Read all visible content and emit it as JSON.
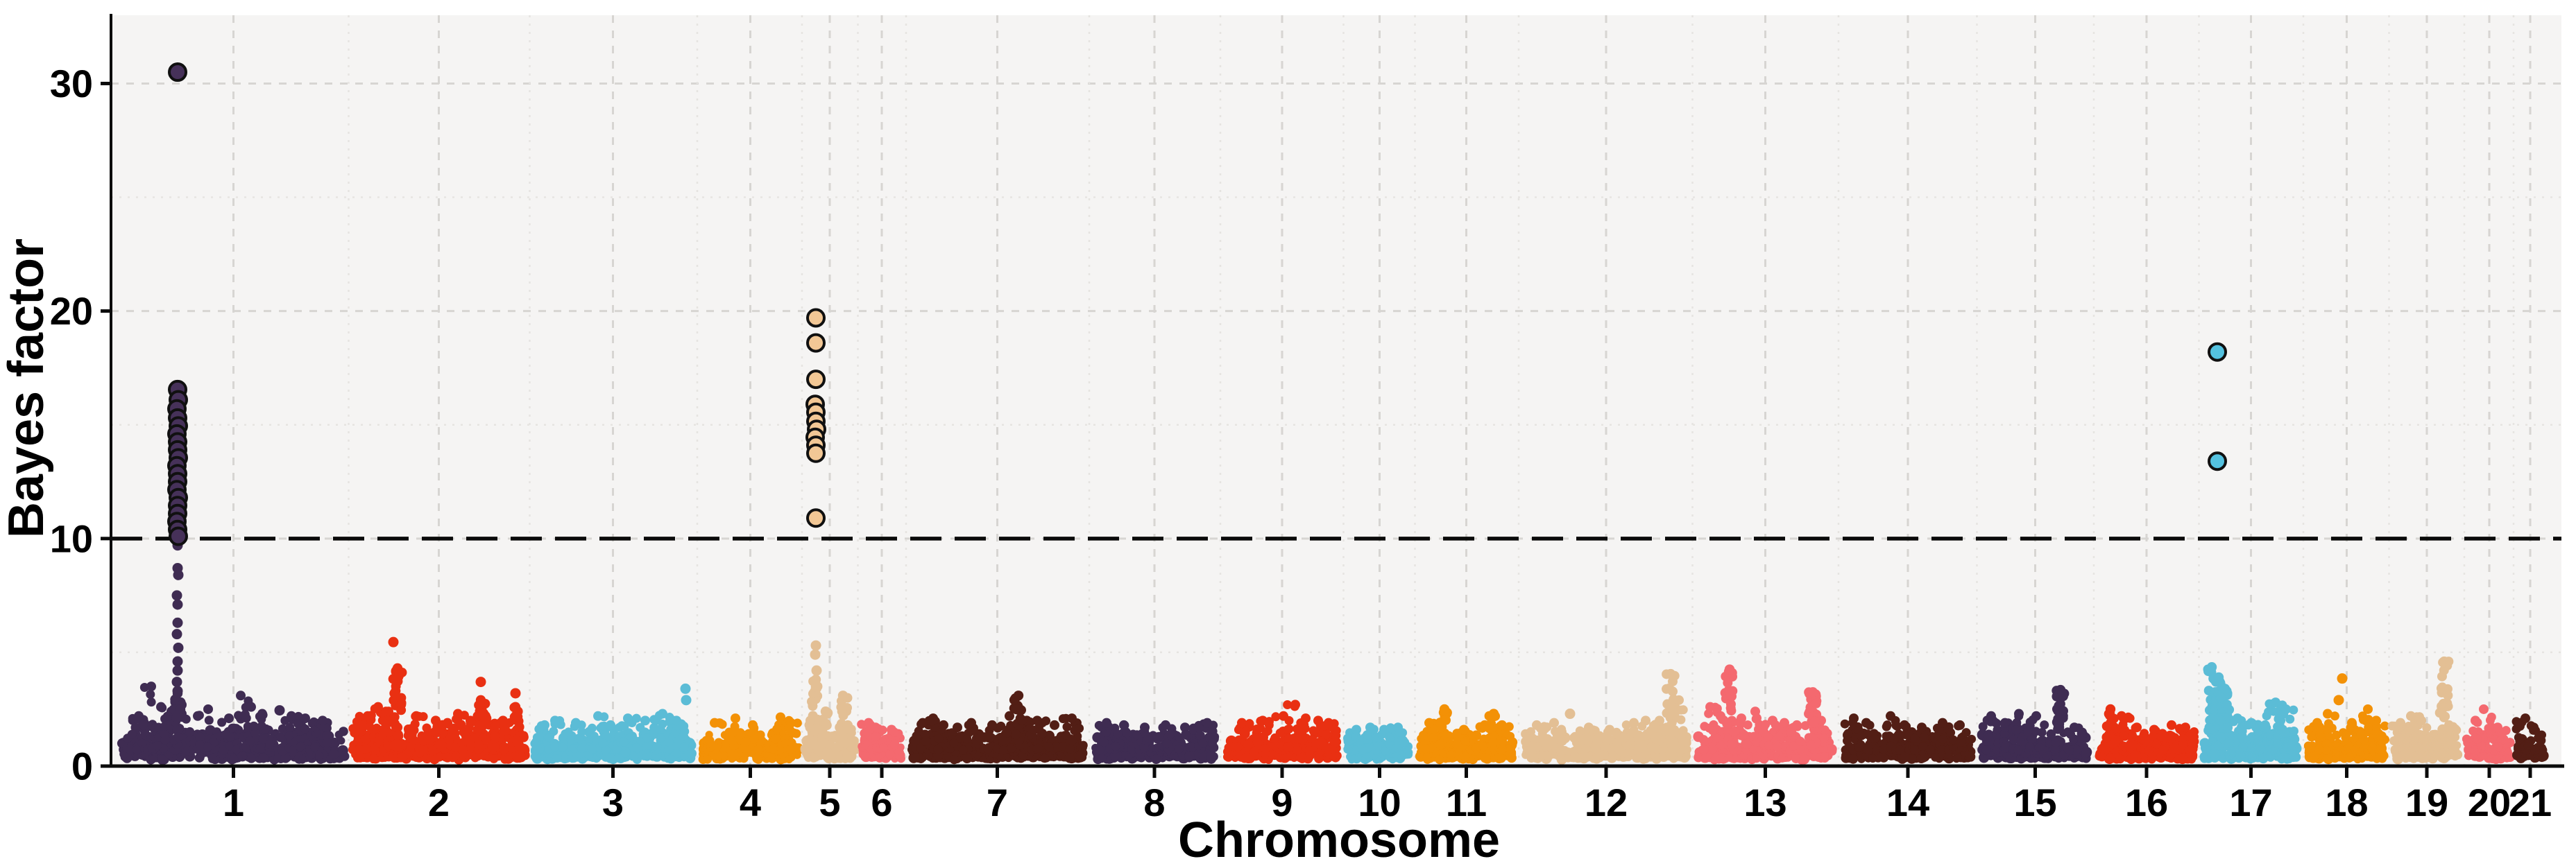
{
  "chart_data": {
    "type": "scatter",
    "subtype": "manhattan",
    "title": "",
    "xlabel": "Chromosome",
    "ylabel": "Bayes factor",
    "ylim": [
      0,
      33
    ],
    "yticks": [
      0,
      10,
      20,
      30
    ],
    "ygrid_major": [
      10,
      20,
      30
    ],
    "ygrid_minor": [
      5,
      15,
      25
    ],
    "threshold": {
      "value": 10,
      "style": "dashed",
      "color": "#0a0a0a"
    },
    "grid": "major dashed + minor dotted, light gray",
    "legend": "none",
    "panel_bg": "#f5f4f3",
    "grid_major_color": "#d7d5d2",
    "grid_minor_color": "#e6e4e1",
    "axis_color": "#0b0b0b",
    "palette_cycle": [
      "#3f2c52",
      "#e93012",
      "#5bbcd6",
      "#f39106",
      "#e3bf94",
      "#f4696f",
      "#521e15"
    ],
    "significant_fill": {
      "1": "#463159",
      "5": "#f2c795",
      "17": "#54c2e0"
    },
    "chromosomes": [
      {
        "label": "1",
        "x_range": [
          176,
          497
        ],
        "band_max": 1.6,
        "bumps": [
          [
            200,
            2.2
          ],
          [
            218,
            3.5
          ],
          [
            232,
            2.6
          ],
          [
            247,
            2.4
          ],
          [
            262,
            2.3
          ],
          [
            285,
            2.2
          ],
          [
            300,
            2.5
          ],
          [
            330,
            2.1
          ],
          [
            347,
            3.1
          ],
          [
            362,
            2.6
          ],
          [
            378,
            2.3
          ],
          [
            420,
            2.2
          ],
          [
            440,
            2.1
          ],
          [
            465,
            2.0
          ]
        ],
        "spikes": [
          [
            256,
            3.2
          ]
        ],
        "dots": [
          [
            256,
            9.7
          ],
          [
            256,
            8.7
          ],
          [
            257,
            8.4
          ],
          [
            255,
            7.5
          ],
          [
            256,
            7.1
          ],
          [
            256,
            6.3
          ],
          [
            255,
            5.8
          ],
          [
            257,
            5.2
          ],
          [
            256,
            4.6
          ],
          [
            256,
            4.2
          ],
          [
            255,
            3.7
          ],
          [
            256,
            3.3
          ],
          [
            403,
            2.45
          ]
        ],
        "significant": [
          [
            256,
            30.5
          ],
          [
            256,
            16.55
          ],
          [
            257,
            16.1
          ],
          [
            255,
            15.7
          ],
          [
            256,
            15.3
          ],
          [
            257,
            14.95
          ],
          [
            255,
            14.6
          ],
          [
            256,
            14.25
          ],
          [
            256,
            13.9
          ],
          [
            257,
            13.55
          ],
          [
            255,
            13.2
          ],
          [
            256,
            12.85
          ],
          [
            256,
            12.5
          ],
          [
            255,
            12.15
          ],
          [
            257,
            11.8
          ],
          [
            256,
            11.45
          ],
          [
            256,
            11.1
          ],
          [
            255,
            10.75
          ],
          [
            256,
            10.4
          ],
          [
            257,
            10.1
          ]
        ]
      },
      {
        "label": "2",
        "x_range": [
          508,
          757
        ],
        "band_max": 1.5,
        "bumps": [
          [
            520,
            2.0
          ],
          [
            530,
            2.2
          ],
          [
            545,
            2.6
          ],
          [
            560,
            2.4
          ],
          [
            600,
            2.2
          ],
          [
            628,
            2.0
          ],
          [
            645,
            1.9
          ],
          [
            660,
            2.3
          ],
          [
            678,
            2.0
          ],
          [
            700,
            2.2
          ],
          [
            725,
            2.0
          ]
        ],
        "spikes": [
          [
            573,
            4.3
          ],
          [
            693,
            2.9
          ],
          [
            743,
            2.6
          ]
        ],
        "dots": [
          [
            567,
            5.45
          ],
          [
            693,
            3.7
          ],
          [
            743,
            3.2
          ]
        ],
        "significant": []
      },
      {
        "label": "3",
        "x_range": [
          770,
          997
        ],
        "band_max": 1.5,
        "bumps": [
          [
            785,
            1.8
          ],
          [
            800,
            2.0
          ],
          [
            830,
            1.9
          ],
          [
            862,
            2.2
          ],
          [
            880,
            1.8
          ],
          [
            905,
            2.1
          ],
          [
            930,
            2.0
          ],
          [
            955,
            2.3
          ],
          [
            975,
            2.0
          ]
        ],
        "spikes": [],
        "dots": [
          [
            988,
            3.4
          ],
          [
            989,
            2.9
          ]
        ],
        "significant": []
      },
      {
        "label": "4",
        "x_range": [
          1013,
          1150
        ],
        "band_max": 1.5,
        "bumps": [
          [
            1030,
            1.9
          ],
          [
            1060,
            2.1
          ],
          [
            1085,
            1.8
          ],
          [
            1125,
            2.15
          ],
          [
            1140,
            1.9
          ]
        ],
        "spikes": [],
        "dots": [],
        "significant": []
      },
      {
        "label": "5",
        "x_range": [
          1162,
          1230
        ],
        "band_max": 1.5,
        "bumps": [
          [
            1168,
            2.0
          ],
          [
            1222,
            1.8
          ]
        ],
        "spikes": [
          [
            1176,
            3.8
          ],
          [
            1190,
            2.4
          ],
          [
            1215,
            3.1
          ]
        ],
        "dots": [
          [
            1176,
            5.3
          ],
          [
            1175,
            4.9
          ],
          [
            1177,
            4.2
          ]
        ],
        "significant": [
          [
            1176,
            19.7
          ],
          [
            1176,
            18.6
          ],
          [
            1176,
            17.0
          ],
          [
            1175,
            15.9
          ],
          [
            1176,
            15.55
          ],
          [
            1176,
            15.15
          ],
          [
            1177,
            14.8
          ],
          [
            1175,
            14.45
          ],
          [
            1176,
            14.1
          ],
          [
            1176,
            13.75
          ],
          [
            1176,
            10.9
          ]
        ]
      },
      {
        "label": "6",
        "x_range": [
          1243,
          1299
        ],
        "band_max": 1.4,
        "bumps": [
          [
            1252,
            1.9
          ],
          [
            1262,
            1.7
          ],
          [
            1285,
            1.6
          ]
        ],
        "spikes": [],
        "dots": [],
        "significant": []
      },
      {
        "label": "7",
        "x_range": [
          1313,
          1562
        ],
        "band_max": 1.5,
        "bumps": [
          [
            1330,
            1.9
          ],
          [
            1345,
            2.1
          ],
          [
            1360,
            1.8
          ],
          [
            1380,
            1.7
          ],
          [
            1400,
            1.9
          ],
          [
            1430,
            1.8
          ],
          [
            1455,
            2.2
          ],
          [
            1480,
            2.0
          ],
          [
            1495,
            2.0
          ],
          [
            1520,
            1.8
          ],
          [
            1545,
            2.1
          ]
        ],
        "spikes": [
          [
            1468,
            3.1
          ]
        ],
        "dots": [
          [
            1343,
            2.0
          ]
        ],
        "significant": []
      },
      {
        "label": "8",
        "x_range": [
          1578,
          1750
        ],
        "band_max": 1.5,
        "bumps": [
          [
            1595,
            1.9
          ],
          [
            1620,
            1.8
          ],
          [
            1650,
            1.7
          ],
          [
            1680,
            1.8
          ],
          [
            1708,
            1.7
          ],
          [
            1740,
            1.9
          ]
        ],
        "spikes": [],
        "dots": [],
        "significant": []
      },
      {
        "label": "9",
        "x_range": [
          1768,
          1928
        ],
        "band_max": 1.5,
        "bumps": [
          [
            1790,
            1.9
          ],
          [
            1820,
            2.0
          ],
          [
            1850,
            2.2
          ],
          [
            1867,
            2.7
          ],
          [
            1882,
            2.1
          ],
          [
            1900,
            2.0
          ],
          [
            1915,
            1.9
          ]
        ],
        "spikes": [],
        "dots": [],
        "significant": []
      },
      {
        "label": "10",
        "x_range": [
          1945,
          2032
        ],
        "band_max": 1.4,
        "bumps": [
          [
            1955,
            1.6
          ],
          [
            1975,
            1.7
          ],
          [
            1995,
            1.6
          ],
          [
            2015,
            1.7
          ]
        ],
        "spikes": [],
        "dots": [],
        "significant": []
      },
      {
        "label": "11",
        "x_range": [
          2047,
          2180
        ],
        "band_max": 1.5,
        "bumps": [
          [
            2060,
            1.9
          ],
          [
            2110,
            1.6
          ],
          [
            2140,
            1.8
          ],
          [
            2165,
            1.8
          ]
        ],
        "spikes": [
          [
            2082,
            2.5
          ],
          [
            2153,
            2.3
          ]
        ],
        "dots": [],
        "significant": []
      },
      {
        "label": "12",
        "x_range": [
          2198,
          2432
        ],
        "band_max": 1.5,
        "bumps": [
          [
            2215,
            1.8
          ],
          [
            2240,
            1.9
          ],
          [
            2290,
            1.7
          ],
          [
            2320,
            1.6
          ],
          [
            2355,
            1.9
          ],
          [
            2372,
            2.0
          ],
          [
            2392,
            2.0
          ],
          [
            2420,
            2.9
          ]
        ],
        "spikes": [
          [
            2408,
            4.05
          ]
        ],
        "dots": [
          [
            2263,
            2.3
          ]
        ],
        "significant": []
      },
      {
        "label": "13",
        "x_range": [
          2447,
          2642
        ],
        "band_max": 1.5,
        "bumps": [
          [
            2465,
            2.6
          ],
          [
            2480,
            2.2
          ],
          [
            2510,
            2.1
          ],
          [
            2530,
            2.4
          ],
          [
            2555,
            2.0
          ],
          [
            2572,
            1.9
          ],
          [
            2590,
            1.8
          ],
          [
            2625,
            2.0
          ]
        ],
        "spikes": [
          [
            2493,
            4.25
          ],
          [
            2613,
            3.25
          ]
        ],
        "dots": [],
        "significant": []
      },
      {
        "label": "14",
        "x_range": [
          2658,
          2842
        ],
        "band_max": 1.5,
        "bumps": [
          [
            2672,
            2.1
          ],
          [
            2690,
            1.9
          ],
          [
            2725,
            2.2
          ],
          [
            2745,
            1.8
          ],
          [
            2770,
            1.7
          ],
          [
            2800,
            1.9
          ],
          [
            2825,
            1.8
          ]
        ],
        "spikes": [],
        "dots": [],
        "significant": []
      },
      {
        "label": "15",
        "x_range": [
          2857,
          3010
        ],
        "band_max": 1.5,
        "bumps": [
          [
            2870,
            2.2
          ],
          [
            2890,
            1.9
          ],
          [
            2910,
            2.3
          ],
          [
            2935,
            2.2
          ],
          [
            2990,
            1.7
          ]
        ],
        "spikes": [
          [
            2970,
            3.35
          ]
        ],
        "dots": [],
        "significant": []
      },
      {
        "label": "16",
        "x_range": [
          3026,
          3162
        ],
        "band_max": 1.5,
        "bumps": [
          [
            3058,
            2.2
          ],
          [
            3080,
            1.7
          ],
          [
            3105,
            1.6
          ],
          [
            3130,
            1.8
          ],
          [
            3150,
            1.7
          ]
        ],
        "spikes": [
          [
            3042,
            2.5
          ]
        ],
        "dots": [],
        "significant": []
      },
      {
        "label": "17",
        "x_range": [
          3177,
          3312
        ],
        "band_max": 1.5,
        "bumps": [
          [
            3225,
            2.1
          ],
          [
            3245,
            1.9
          ],
          [
            3265,
            1.8
          ],
          [
            3280,
            2.8
          ],
          [
            3295,
            2.5
          ]
        ],
        "spikes": [
          [
            3188,
            4.35
          ],
          [
            3198,
            3.9
          ],
          [
            3207,
            3.4
          ]
        ],
        "dots": [],
        "significant": [
          [
            3196,
            18.2
          ],
          [
            3196,
            13.4
          ]
        ]
      },
      {
        "label": "18",
        "x_range": [
          3328,
          3437
        ],
        "band_max": 1.5,
        "bumps": [
          [
            3340,
            1.9
          ],
          [
            3355,
            2.3
          ],
          [
            3390,
            1.9
          ],
          [
            3413,
            2.5
          ],
          [
            3425,
            2.0
          ]
        ],
        "spikes": [],
        "dots": [
          [
            3376,
            3.85
          ],
          [
            3371,
            2.9
          ]
        ],
        "significant": []
      },
      {
        "label": "19",
        "x_range": [
          3450,
          3546
        ],
        "band_max": 1.5,
        "bumps": [
          [
            3460,
            1.9
          ],
          [
            3475,
            2.2
          ],
          [
            3490,
            2.0
          ],
          [
            3530,
            1.8
          ]
        ],
        "spikes": [
          [
            3523,
            4.6
          ]
        ],
        "dots": [],
        "significant": []
      },
      {
        "label": "20",
        "x_range": [
          3558,
          3618
        ],
        "band_max": 1.4,
        "bumps": [
          [
            3568,
            2.0
          ],
          [
            3580,
            2.5
          ],
          [
            3600,
            1.7
          ]
        ],
        "spikes": [],
        "dots": [],
        "significant": []
      },
      {
        "label": "21",
        "x_range": [
          3628,
          3666
        ],
        "band_max": 1.3,
        "bumps": [
          [
            3640,
            2.1
          ],
          [
            3652,
            1.7
          ]
        ],
        "spikes": [],
        "dots": [],
        "significant": []
      }
    ]
  }
}
